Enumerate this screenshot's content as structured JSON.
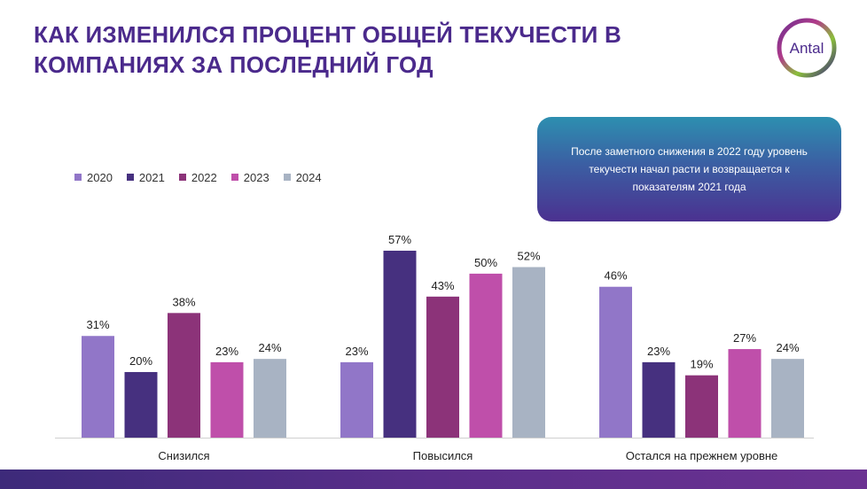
{
  "title": "КАК ИЗМЕНИЛСЯ ПРОЦЕНТ ОБЩЕЙ ТЕКУЧЕСТИ В КОМПАНИЯХ ЗА ПОСЛЕДНИЙ ГОД",
  "logo": {
    "text": "Antal"
  },
  "callout": {
    "text": "После заметного снижения в 2022 году уровень текучести начал расти и возвращается к показателям 2021 года"
  },
  "colors": {
    "title": "#4b2a8c",
    "bottom_bar": "#4a2c86"
  },
  "chart_data": {
    "type": "bar",
    "categories": [
      "Снизился",
      "Повысился",
      "Остался на прежнем уровне"
    ],
    "series": [
      {
        "name": "2020",
        "color": "#9176c8",
        "values": [
          31,
          23,
          46
        ],
        "labels": [
          "31%",
          "23%",
          "46%"
        ]
      },
      {
        "name": "2021",
        "color": "#46307f",
        "values": [
          20,
          57,
          23
        ],
        "labels": [
          "20%",
          "57%",
          "23%"
        ]
      },
      {
        "name": "2022",
        "color": "#8c3379",
        "values": [
          38,
          43,
          19
        ],
        "labels": [
          "38%",
          "43%",
          "19%"
        ]
      },
      {
        "name": "2023",
        "color": "#bf4faa",
        "values": [
          23,
          50,
          27
        ],
        "labels": [
          "23%",
          "50%",
          "27%"
        ]
      },
      {
        "name": "2024",
        "color": "#a8b3c3",
        "values": [
          24,
          52,
          24
        ],
        "labels": [
          "24%",
          "52%",
          "24%"
        ]
      }
    ],
    "unit": "%",
    "ylim": [
      0,
      57
    ],
    "grid": false,
    "legend": "top-left"
  }
}
